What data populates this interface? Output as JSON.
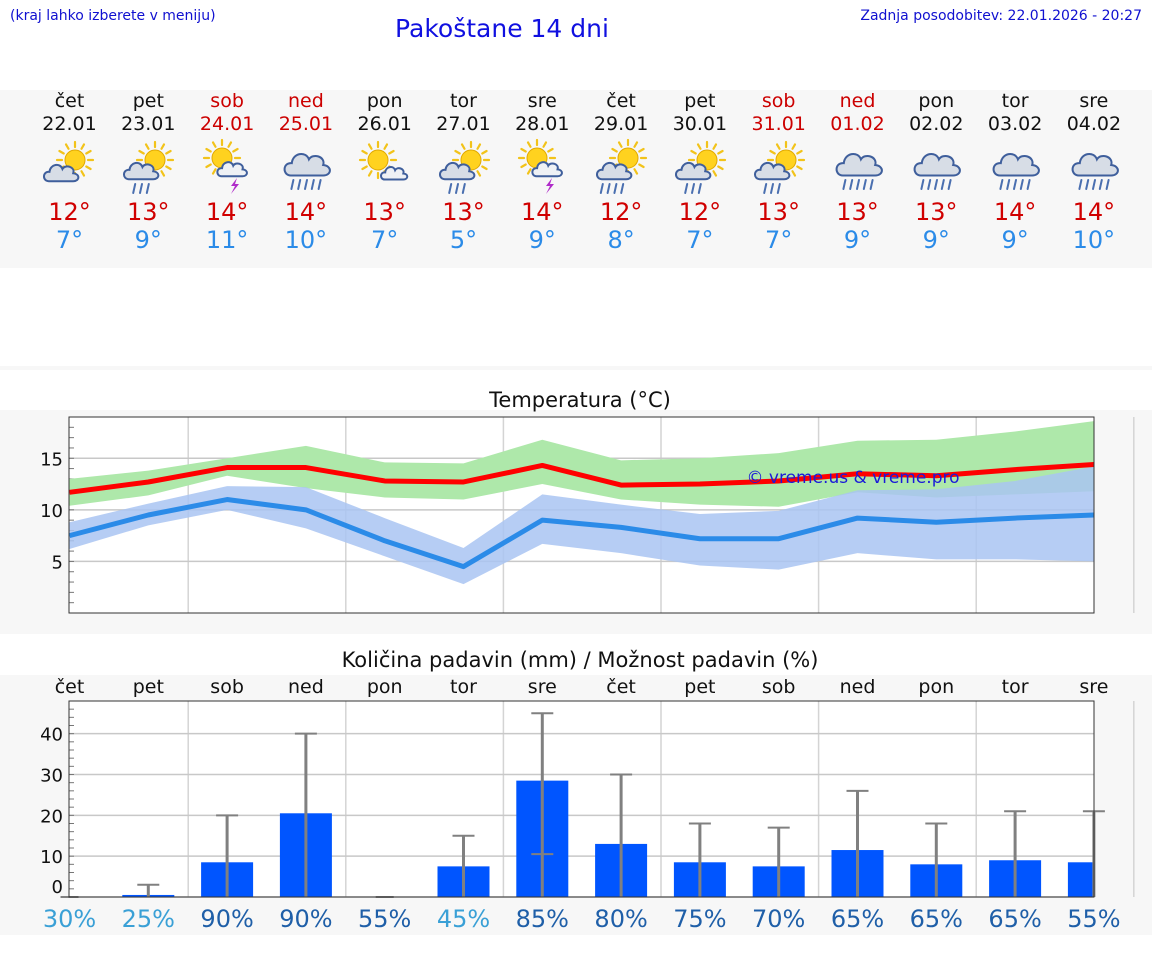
{
  "header": {
    "note": "(kraj lahko izberete v meniju)",
    "title": "Pakoštane 14 dni",
    "update": "Zadnja posodobitev: 22.01.2026 - 20:27"
  },
  "days": [
    {
      "wd": "čet",
      "date": "22.01",
      "icon": "partly-cloudy-sun-icon",
      "tmax": "12°",
      "tmin": "7°",
      "weekend": false
    },
    {
      "wd": "pet",
      "date": "23.01",
      "icon": "sun-cloud-light-rain-icon",
      "tmax": "13°",
      "tmin": "9°",
      "weekend": false
    },
    {
      "wd": "sob",
      "date": "24.01",
      "icon": "sun-cloud-thunder-icon",
      "tmax": "14°",
      "tmin": "11°",
      "weekend": true
    },
    {
      "wd": "ned",
      "date": "25.01",
      "icon": "cloud-rain-icon",
      "tmax": "14°",
      "tmin": "10°",
      "weekend": true
    },
    {
      "wd": "pon",
      "date": "26.01",
      "icon": "sun-small-cloud-icon",
      "tmax": "13°",
      "tmin": "7°",
      "weekend": false
    },
    {
      "wd": "tor",
      "date": "27.01",
      "icon": "sun-cloud-light-rain-icon",
      "tmax": "13°",
      "tmin": "5°",
      "weekend": false
    },
    {
      "wd": "sre",
      "date": "28.01",
      "icon": "sun-cloud-thunder-icon",
      "tmax": "14°",
      "tmin": "9°",
      "weekend": false
    },
    {
      "wd": "čet",
      "date": "29.01",
      "icon": "sun-cloud-rain-icon",
      "tmax": "12°",
      "tmin": "8°",
      "weekend": false
    },
    {
      "wd": "pet",
      "date": "30.01",
      "icon": "sun-cloud-light-rain-icon",
      "tmax": "12°",
      "tmin": "7°",
      "weekend": false
    },
    {
      "wd": "sob",
      "date": "31.01",
      "icon": "sun-cloud-light-rain-icon",
      "tmax": "13°",
      "tmin": "7°",
      "weekend": true
    },
    {
      "wd": "ned",
      "date": "01.02",
      "icon": "cloud-rain-icon",
      "tmax": "13°",
      "tmin": "9°",
      "weekend": true
    },
    {
      "wd": "pon",
      "date": "02.02",
      "icon": "cloud-rain-icon",
      "tmax": "13°",
      "tmin": "9°",
      "weekend": false
    },
    {
      "wd": "tor",
      "date": "03.02",
      "icon": "cloud-rain-icon",
      "tmax": "14°",
      "tmin": "9°",
      "weekend": false
    },
    {
      "wd": "sre",
      "date": "04.02",
      "icon": "cloud-rain-icon",
      "tmax": "14°",
      "tmin": "10°",
      "weekend": false
    }
  ],
  "colors": {
    "max": "#ff0000",
    "min": "#2b8be8",
    "maxBand": "#aee8aa",
    "minBand": "#a9c4f2",
    "overlap": "#6fc6a4",
    "bar": "#0055ff",
    "whisker": "#808080",
    "pctLight": "#3aa0d6",
    "pctDark": "#1f5fa8"
  },
  "chart_data": [
    {
      "type": "line",
      "title": "Temperatura (°C)",
      "watermark": "© vreme.us & vreme.pro",
      "x": [
        "22.01",
        "23.01",
        "24.01",
        "25.01",
        "26.01",
        "27.01",
        "28.01",
        "29.01",
        "30.01",
        "31.01",
        "01.02",
        "02.02",
        "03.02",
        "04.02"
      ],
      "ylim": [
        0,
        19
      ],
      "yticks": [
        5,
        10,
        15
      ],
      "series": [
        {
          "name": "max",
          "values": [
            11.7,
            12.7,
            14.1,
            14.1,
            12.8,
            12.7,
            14.3,
            12.4,
            12.5,
            12.8,
            13.5,
            13.3,
            13.9,
            14.4
          ],
          "low": [
            10.4,
            11.4,
            13.3,
            12.1,
            11.2,
            11.0,
            12.5,
            11.0,
            10.5,
            10.3,
            11.7,
            11.2,
            11.5,
            11.8
          ],
          "high": [
            13.0,
            13.8,
            15.0,
            16.2,
            14.6,
            14.5,
            16.8,
            14.8,
            15.0,
            15.5,
            16.7,
            16.8,
            17.6,
            18.6
          ]
        },
        {
          "name": "min",
          "values": [
            7.5,
            9.5,
            11.0,
            10.0,
            7.0,
            4.5,
            9.0,
            8.3,
            7.2,
            7.2,
            9.2,
            8.8,
            9.2,
            9.5
          ],
          "low": [
            6.2,
            8.5,
            10.0,
            8.2,
            5.5,
            2.8,
            6.7,
            5.8,
            4.6,
            4.2,
            5.8,
            5.2,
            5.2,
            5.0
          ],
          "high": [
            8.8,
            10.6,
            12.3,
            12.2,
            9.2,
            6.3,
            11.5,
            10.5,
            9.6,
            9.9,
            11.9,
            12.0,
            12.8,
            14.2
          ]
        }
      ]
    },
    {
      "type": "bar",
      "title": "Količina padavin (mm) / Možnost padavin (%)",
      "categories": [
        "čet",
        "pet",
        "sob",
        "ned",
        "pon",
        "tor",
        "sre",
        "čet",
        "pet",
        "sob",
        "ned",
        "pon",
        "tor",
        "sre"
      ],
      "values": [
        0,
        0.5,
        8.5,
        20.5,
        0,
        7.5,
        28.5,
        13,
        8.5,
        7.5,
        11.5,
        8,
        9,
        8.5
      ],
      "err_low": [
        0,
        0,
        0,
        0,
        0,
        0,
        10.5,
        0,
        0,
        0,
        0,
        0,
        0,
        0
      ],
      "err_high": [
        0,
        3,
        20,
        40,
        0,
        15,
        45,
        30,
        18,
        17,
        26,
        18,
        21,
        21
      ],
      "ylim": [
        0,
        48
      ],
      "yticks": [
        0,
        10,
        20,
        30,
        40
      ],
      "probability": [
        "30%",
        "25%",
        "90%",
        "90%",
        "55%",
        "45%",
        "85%",
        "80%",
        "75%",
        "70%",
        "65%",
        "65%",
        "65%",
        "55%"
      ]
    }
  ]
}
